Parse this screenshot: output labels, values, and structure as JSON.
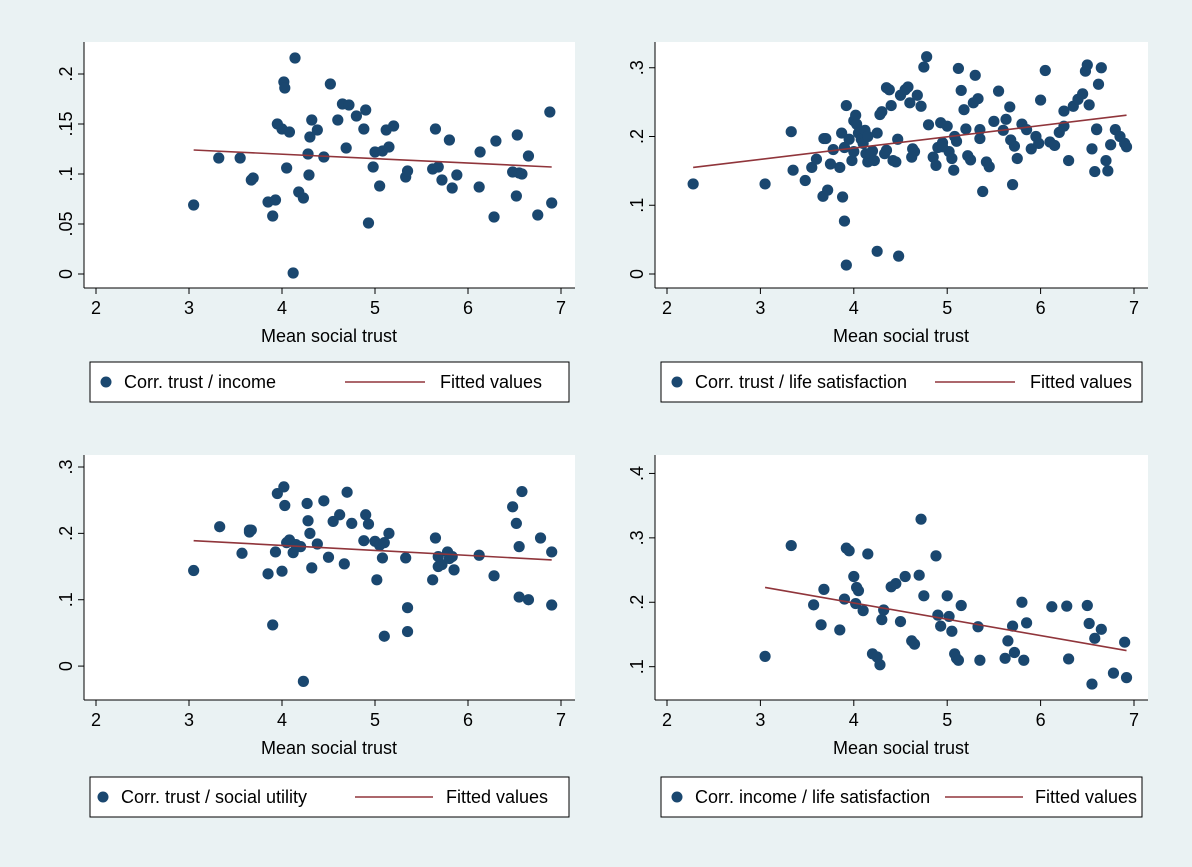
{
  "colors": {
    "background": "#eaf2f3",
    "plot_bg": "#ffffff",
    "marker": "#1a476f",
    "fit_line": "#90353b",
    "axis": "#000000"
  },
  "chart_data": [
    {
      "type": "scatter",
      "title": "",
      "xlabel": "Mean social trust",
      "ylabel": "",
      "xlim": [
        2,
        7
      ],
      "ylim": [
        0,
        0.22
      ],
      "xticks": [
        2,
        3,
        4,
        5,
        6,
        7
      ],
      "xtick_labels": [
        "2",
        "3",
        "4",
        "5",
        "6",
        "7"
      ],
      "yticks": [
        0,
        0.05,
        0.1,
        0.15,
        0.2
      ],
      "ytick_labels": [
        "0",
        ".05",
        ".1",
        ".15",
        ".2"
      ],
      "grid": false,
      "legend_position": "bottom",
      "series": [
        {
          "name": "Corr. trust / income",
          "mode": "markers",
          "x": [
            3.05,
            3.32,
            3.55,
            3.67,
            3.69,
            3.85,
            3.9,
            3.93,
            3.95,
            4.0,
            4.02,
            4.03,
            4.05,
            4.08,
            4.12,
            4.14,
            4.18,
            4.23,
            4.28,
            4.29,
            4.3,
            4.32,
            4.38,
            4.45,
            4.52,
            4.6,
            4.65,
            4.69,
            4.72,
            4.8,
            4.88,
            4.9,
            4.93,
            4.98,
            5.0,
            5.05,
            5.08,
            5.12,
            5.15,
            5.2,
            5.33,
            5.35,
            5.62,
            5.65,
            5.68,
            5.72,
            5.8,
            5.83,
            5.88,
            6.12,
            6.13,
            6.28,
            6.3,
            6.48,
            6.52,
            6.53,
            6.55,
            6.58,
            6.65,
            6.75,
            6.88,
            6.9
          ],
          "y": [
            0.069,
            0.116,
            0.116,
            0.094,
            0.096,
            0.072,
            0.058,
            0.074,
            0.15,
            0.145,
            0.192,
            0.186,
            0.106,
            0.142,
            0.001,
            0.216,
            0.082,
            0.076,
            0.12,
            0.099,
            0.137,
            0.154,
            0.144,
            0.117,
            0.19,
            0.154,
            0.17,
            0.126,
            0.169,
            0.158,
            0.145,
            0.164,
            0.051,
            0.107,
            0.122,
            0.088,
            0.123,
            0.144,
            0.127,
            0.148,
            0.097,
            0.103,
            0.105,
            0.145,
            0.107,
            0.094,
            0.134,
            0.086,
            0.099,
            0.087,
            0.122,
            0.057,
            0.133,
            0.102,
            0.078,
            0.139,
            0.101,
            0.1,
            0.118,
            0.059,
            0.162,
            0.071
          ]
        },
        {
          "name": "Fitted values",
          "mode": "line",
          "x": [
            3.05,
            6.9
          ],
          "y": [
            0.124,
            0.107
          ]
        }
      ]
    },
    {
      "type": "scatter",
      "title": "",
      "xlabel": "Mean social trust",
      "ylabel": "",
      "xlim": [
        2,
        7
      ],
      "ylim": [
        0,
        0.32
      ],
      "xticks": [
        2,
        3,
        4,
        5,
        6,
        7
      ],
      "xtick_labels": [
        "2",
        "3",
        "4",
        "5",
        "6",
        "7"
      ],
      "yticks": [
        0,
        0.1,
        0.2,
        0.3
      ],
      "ytick_labels": [
        "0",
        ".1",
        ".2",
        ".3"
      ],
      "grid": false,
      "legend_position": "bottom",
      "series": [
        {
          "name": "Corr. trust / life satisfaction",
          "mode": "markers",
          "x": [
            2.28,
            3.05,
            3.33,
            3.35,
            3.48,
            3.55,
            3.6,
            3.67,
            3.68,
            3.7,
            3.72,
            3.78,
            3.85,
            3.87,
            3.88,
            3.9,
            3.92,
            3.95,
            3.98,
            4.0,
            4.02,
            4.03,
            4.05,
            4.08,
            4.1,
            4.12,
            4.13,
            4.15,
            4.18,
            4.2,
            4.22,
            4.25,
            4.28,
            4.3,
            4.33,
            4.35,
            4.38,
            4.4,
            4.42,
            4.45,
            4.47,
            4.5,
            4.55,
            4.58,
            4.6,
            4.63,
            4.65,
            4.68,
            4.72,
            4.75,
            4.78,
            4.8,
            4.85,
            4.88,
            4.9,
            4.93,
            4.95,
            5.0,
            5.02,
            5.05,
            5.07,
            5.1,
            5.12,
            5.15,
            5.18,
            5.2,
            5.22,
            5.25,
            5.28,
            5.3,
            5.33,
            5.35,
            5.38,
            5.42,
            5.45,
            5.5,
            5.55,
            5.6,
            5.63,
            5.67,
            5.7,
            5.72,
            5.75,
            5.8,
            5.85,
            5.9,
            5.95,
            6.0,
            6.05,
            6.1,
            6.15,
            6.2,
            6.25,
            6.3,
            6.35,
            6.4,
            6.45,
            6.48,
            6.5,
            6.52,
            6.55,
            6.58,
            6.6,
            6.62,
            6.65,
            6.7,
            6.72,
            6.75,
            6.8,
            6.85,
            6.9,
            3.9,
            3.92,
            4.25,
            4.48,
            3.75,
            4.0,
            4.15,
            4.35,
            4.62,
            4.95,
            5.08,
            5.35,
            5.68,
            5.98,
            6.25,
            6.6,
            6.92
          ],
          "y": [
            0.131,
            0.131,
            0.207,
            0.151,
            0.136,
            0.155,
            0.167,
            0.113,
            0.197,
            0.197,
            0.122,
            0.181,
            0.155,
            0.205,
            0.112,
            0.184,
            0.245,
            0.196,
            0.165,
            0.223,
            0.231,
            0.218,
            0.205,
            0.196,
            0.19,
            0.209,
            0.175,
            0.163,
            0.175,
            0.179,
            0.165,
            0.205,
            0.232,
            0.236,
            0.175,
            0.271,
            0.268,
            0.245,
            0.165,
            0.163,
            0.196,
            0.26,
            0.268,
            0.272,
            0.249,
            0.182,
            0.178,
            0.26,
            0.244,
            0.301,
            0.316,
            0.217,
            0.17,
            0.158,
            0.184,
            0.22,
            0.191,
            0.215,
            0.178,
            0.168,
            0.151,
            0.193,
            0.299,
            0.267,
            0.239,
            0.211,
            0.172,
            0.166,
            0.249,
            0.289,
            0.255,
            0.197,
            0.12,
            0.163,
            0.156,
            0.222,
            0.266,
            0.209,
            0.225,
            0.243,
            0.13,
            0.186,
            0.168,
            0.218,
            0.21,
            0.182,
            0.2,
            0.253,
            0.296,
            0.192,
            0.187,
            0.206,
            0.237,
            0.165,
            0.244,
            0.254,
            0.262,
            0.295,
            0.304,
            0.246,
            0.182,
            0.149,
            0.211,
            0.276,
            0.3,
            0.165,
            0.15,
            0.188,
            0.21,
            0.2,
            0.19,
            0.077,
            0.013,
            0.033,
            0.026,
            0.16,
            0.178,
            0.2,
            0.18,
            0.17,
            0.185,
            0.2,
            0.21,
            0.195,
            0.19,
            0.215,
            0.21,
            0.185
          ],
          "y_extra_note": ""
        },
        {
          "name": "Fitted values",
          "mode": "line",
          "x": [
            2.28,
            6.92
          ],
          "y": [
            0.155,
            0.231
          ]
        }
      ]
    },
    {
      "type": "scatter",
      "title": "",
      "xlabel": "Mean social trust",
      "ylabel": "",
      "xlim": [
        2,
        7
      ],
      "ylim": [
        -0.03,
        0.3
      ],
      "xticks": [
        2,
        3,
        4,
        5,
        6,
        7
      ],
      "xtick_labels": [
        "2",
        "3",
        "4",
        "5",
        "6",
        "7"
      ],
      "yticks": [
        0,
        0.1,
        0.2,
        0.3
      ],
      "ytick_labels": [
        "0",
        ".1",
        ".2",
        ".3"
      ],
      "grid": false,
      "legend_position": "bottom",
      "series": [
        {
          "name": "Corr. trust / social utility",
          "mode": "markers",
          "x": [
            3.05,
            3.33,
            3.57,
            3.65,
            3.67,
            3.85,
            3.9,
            3.93,
            3.95,
            4.0,
            4.02,
            4.03,
            4.05,
            4.08,
            4.12,
            4.15,
            4.2,
            4.23,
            4.27,
            4.28,
            4.3,
            4.32,
            4.38,
            4.45,
            4.5,
            4.55,
            4.62,
            4.67,
            4.7,
            4.75,
            4.88,
            4.9,
            4.93,
            5.0,
            5.02,
            5.05,
            5.08,
            5.1,
            5.15,
            5.33,
            5.35,
            5.62,
            5.65,
            5.68,
            5.72,
            5.78,
            5.8,
            5.83,
            6.12,
            6.28,
            6.48,
            6.52,
            6.55,
            6.58,
            6.65,
            6.78,
            6.9
          ],
          "y": [
            0.144,
            0.21,
            0.17,
            0.202,
            0.205,
            0.139,
            0.062,
            0.172,
            0.26,
            0.143,
            0.27,
            0.242,
            0.186,
            0.19,
            0.171,
            0.183,
            0.18,
            -0.023,
            0.245,
            0.219,
            0.2,
            0.148,
            0.184,
            0.249,
            0.164,
            0.218,
            0.228,
            0.154,
            0.262,
            0.215,
            0.189,
            0.228,
            0.214,
            0.188,
            0.13,
            0.182,
            0.163,
            0.186,
            0.2,
            0.163,
            0.052,
            0.13,
            0.193,
            0.165,
            0.153,
            0.172,
            0.162,
            0.165,
            0.167,
            0.136,
            0.24,
            0.215,
            0.18,
            0.263,
            0.1,
            0.193,
            0.172
          ],
          "y_extra": [
            {
              "x": 5.1,
              "y": 0.045
            },
            {
              "x": 5.35,
              "y": 0.088
            },
            {
              "x": 5.68,
              "y": 0.15
            },
            {
              "x": 5.85,
              "y": 0.145
            },
            {
              "x": 6.55,
              "y": 0.104
            },
            {
              "x": 6.9,
              "y": 0.092
            },
            {
              "x": 3.65,
              "y": 0.205
            }
          ]
        },
        {
          "name": "Fitted values",
          "mode": "line",
          "x": [
            3.05,
            6.9
          ],
          "y": [
            0.189,
            0.16
          ]
        }
      ]
    },
    {
      "type": "scatter",
      "title": "",
      "xlabel": "Mean social trust",
      "ylabel": "",
      "xlim": [
        2,
        7
      ],
      "ylim": [
        0.07,
        0.41
      ],
      "xticks": [
        2,
        3,
        4,
        5,
        6,
        7
      ],
      "xtick_labels": [
        "2",
        "3",
        "4",
        "5",
        "6",
        "7"
      ],
      "yticks": [
        0.1,
        0.2,
        0.3,
        0.4
      ],
      "ytick_labels": [
        ".1",
        ".2",
        ".3",
        ".4"
      ],
      "grid": false,
      "legend_position": "bottom",
      "series": [
        {
          "name": "Corr. income / life satisfaction",
          "mode": "markers",
          "x": [
            3.05,
            3.33,
            3.57,
            3.65,
            3.68,
            3.85,
            3.9,
            3.92,
            3.95,
            4.0,
            4.02,
            4.03,
            4.05,
            4.1,
            4.15,
            4.2,
            4.25,
            4.28,
            4.3,
            4.32,
            4.4,
            4.45,
            4.5,
            4.55,
            4.62,
            4.65,
            4.7,
            4.72,
            4.75,
            4.88,
            4.9,
            4.93,
            5.0,
            5.02,
            5.05,
            5.08,
            5.1,
            5.12,
            5.15,
            5.33,
            5.35,
            5.62,
            5.65,
            5.7,
            5.72,
            5.8,
            5.82,
            5.85,
            6.12,
            6.28,
            6.3,
            6.5,
            6.52,
            6.55,
            6.58,
            6.65,
            6.78,
            6.9,
            6.92
          ],
          "y": [
            0.116,
            0.288,
            0.196,
            0.165,
            0.22,
            0.157,
            0.205,
            0.284,
            0.28,
            0.24,
            0.198,
            0.223,
            0.218,
            0.187,
            0.275,
            0.12,
            0.115,
            0.103,
            0.173,
            0.188,
            0.224,
            0.229,
            0.17,
            0.24,
            0.14,
            0.135,
            0.242,
            0.329,
            0.21,
            0.272,
            0.18,
            0.163,
            0.21,
            0.178,
            0.155,
            0.12,
            0.113,
            0.11,
            0.195,
            0.162,
            0.11,
            0.113,
            0.14,
            0.163,
            0.122,
            0.2,
            0.11,
            0.168,
            0.193,
            0.194,
            0.112,
            0.195,
            0.167,
            0.073,
            0.144,
            0.158,
            0.09,
            0.138,
            0.083
          ]
        },
        {
          "name": "Fitted values",
          "mode": "line",
          "x": [
            3.05,
            6.92
          ],
          "y": [
            0.223,
            0.125
          ]
        }
      ]
    }
  ]
}
